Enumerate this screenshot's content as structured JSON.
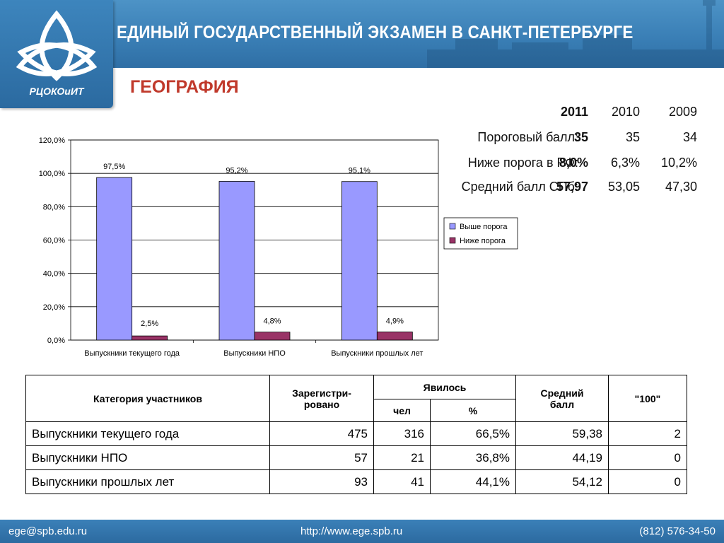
{
  "header": {
    "title": "ЕДИНЫЙ ГОСУДАРСТВЕННЫЙ ЭКЗАМЕН В САНКТ-ПЕТЕРБУРГЕ",
    "logo_text": "РЦОКОиИТ"
  },
  "subtitle": "ГЕОГРАФИЯ",
  "stats": {
    "years": [
      "2011",
      "2010",
      "2009"
    ],
    "rows": [
      {
        "label": "Пороговый балл:",
        "values": [
          "35",
          "35",
          "34"
        ]
      },
      {
        "label": "Ниже порога в РФ:",
        "values": [
          "8,0%",
          "6,3%",
          "10,2%"
        ]
      },
      {
        "label": "Средний балл СПб:",
        "values": [
          "57,97",
          "53,05",
          "47,30"
        ]
      }
    ]
  },
  "chart_data": {
    "type": "bar",
    "categories": [
      "Выпускники текущего года",
      "Выпускники НПО",
      "Выпускники прошлых лет"
    ],
    "series": [
      {
        "name": "Выше порога",
        "values": [
          97.5,
          95.2,
          95.1
        ],
        "labels": [
          "97,5%",
          "95,2%",
          "95,1%"
        ],
        "color": "#9999ff"
      },
      {
        "name": "Ниже порога",
        "values": [
          2.5,
          4.8,
          4.9
        ],
        "labels": [
          "2,5%",
          "4,8%",
          "4,9%"
        ],
        "color": "#993366"
      }
    ],
    "ylim": [
      0,
      120
    ],
    "yticks": [
      "0,0%",
      "20,0%",
      "40,0%",
      "60,0%",
      "80,0%",
      "100,0%",
      "120,0%"
    ],
    "legend_position": "right",
    "grid": true
  },
  "table": {
    "headers": {
      "category": "Категория участников",
      "registered_line1": "Зарегистри-",
      "registered_line2": "ровано",
      "appeared": "Явилось",
      "appeared_count": "чел",
      "appeared_pct": "%",
      "avg_line1": "Средний",
      "avg_line2": "балл",
      "hundred": "\"100\""
    },
    "rows": [
      {
        "category": "Выпускники текущего года",
        "registered": "475",
        "count": "316",
        "pct": "66,5%",
        "avg": "59,38",
        "hundred": "2"
      },
      {
        "category": "Выпускники НПО",
        "registered": "57",
        "count": "21",
        "pct": "36,8%",
        "avg": "44,19",
        "hundred": "0"
      },
      {
        "category": "Выпускники прошлых лет",
        "registered": "93",
        "count": "41",
        "pct": "44,1%",
        "avg": "54,12",
        "hundred": "0"
      }
    ]
  },
  "footer": {
    "email": "ege@spb.edu.ru",
    "url": "http://www.ege.spb.ru",
    "phone": "(812) 576-34-50"
  }
}
